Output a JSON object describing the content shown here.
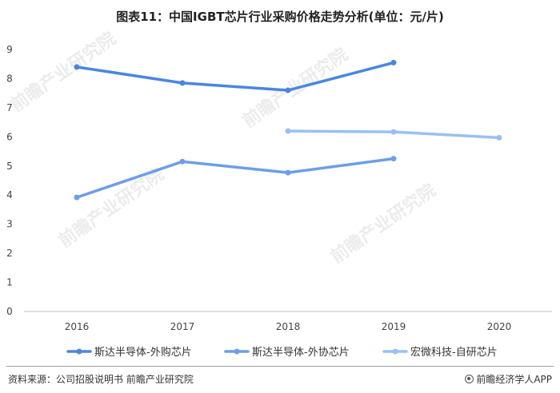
{
  "chart_data": {
    "type": "line",
    "title": "图表11：中国IGBT芯片行业采购价格走势分析(单位：元/片)",
    "categories": [
      "2016",
      "2017",
      "2018",
      "2019",
      "2020"
    ],
    "ylim": [
      0,
      9
    ],
    "yticks": [
      "0",
      "1",
      "2",
      "3",
      "4",
      "5",
      "6",
      "7",
      "8",
      "9"
    ],
    "grid": false,
    "legend_position": "bottom",
    "series": [
      {
        "name": "斯达半导体-外购芯片",
        "color": "#4a86e0",
        "values": [
          8.4,
          7.85,
          7.6,
          8.55,
          null
        ]
      },
      {
        "name": "斯达半导体-外协芯片",
        "color": "#6d9ee8",
        "values": [
          3.92,
          5.15,
          4.77,
          5.25,
          null
        ]
      },
      {
        "name": "宏微科技-自研芯片",
        "color": "#99c0f2",
        "values": [
          null,
          null,
          6.2,
          6.17,
          5.97
        ]
      }
    ]
  },
  "footer": {
    "source": "资料来源：公司招股说明书 前瞻产业研究院",
    "credit": "前瞻经济学人APP",
    "credit_icon": "at-icon"
  },
  "watermark": "前瞻产业研究院"
}
